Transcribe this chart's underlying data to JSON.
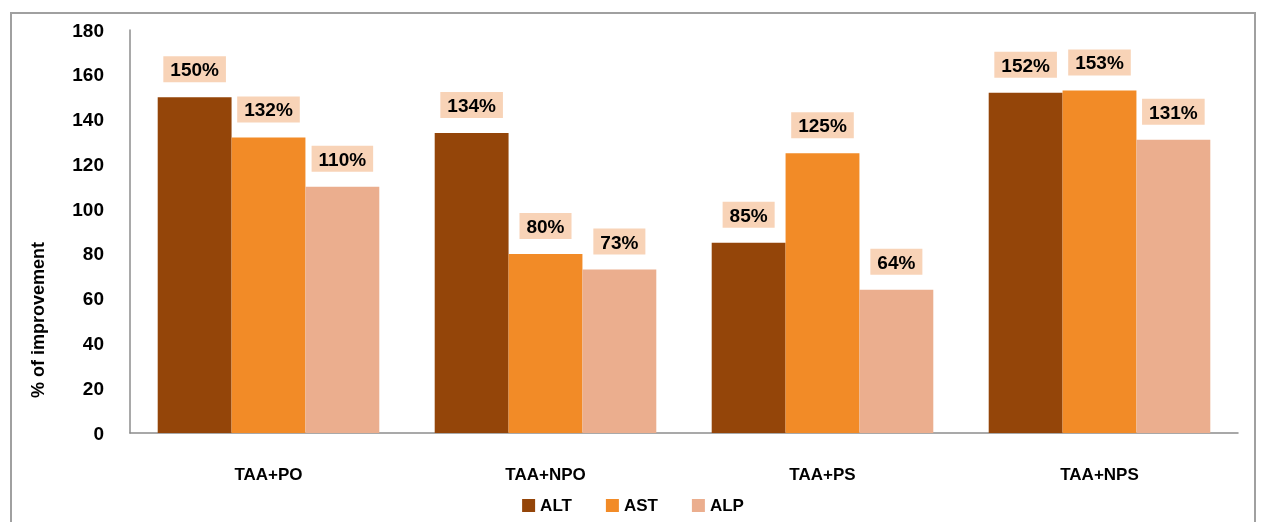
{
  "chart_data": {
    "type": "bar",
    "ylabel": "% of improvement",
    "categories": [
      "TAA+PO",
      "TAA+NPO",
      "TAA+PS",
      "TAA+NPS"
    ],
    "series": [
      {
        "name": "ALT",
        "color": "#944509",
        "values": [
          150,
          134,
          85,
          152
        ],
        "value_labels": [
          "150%",
          "134%",
          "85%",
          "152%"
        ]
      },
      {
        "name": "AST",
        "color": "#F28B27",
        "values": [
          132,
          80,
          125,
          153
        ],
        "value_labels": [
          "132%",
          "80%",
          "125%",
          "153%"
        ]
      },
      {
        "name": "ALP",
        "color": "#EBAE8E",
        "values": [
          110,
          73,
          64,
          131
        ],
        "value_labels": [
          "110%",
          "73%",
          "64%",
          "131%"
        ]
      }
    ],
    "ylim": [
      0,
      180
    ],
    "yticks": [
      0,
      20,
      40,
      60,
      80,
      100,
      120,
      140,
      160,
      180
    ],
    "grid": false,
    "legend": "bottom"
  }
}
